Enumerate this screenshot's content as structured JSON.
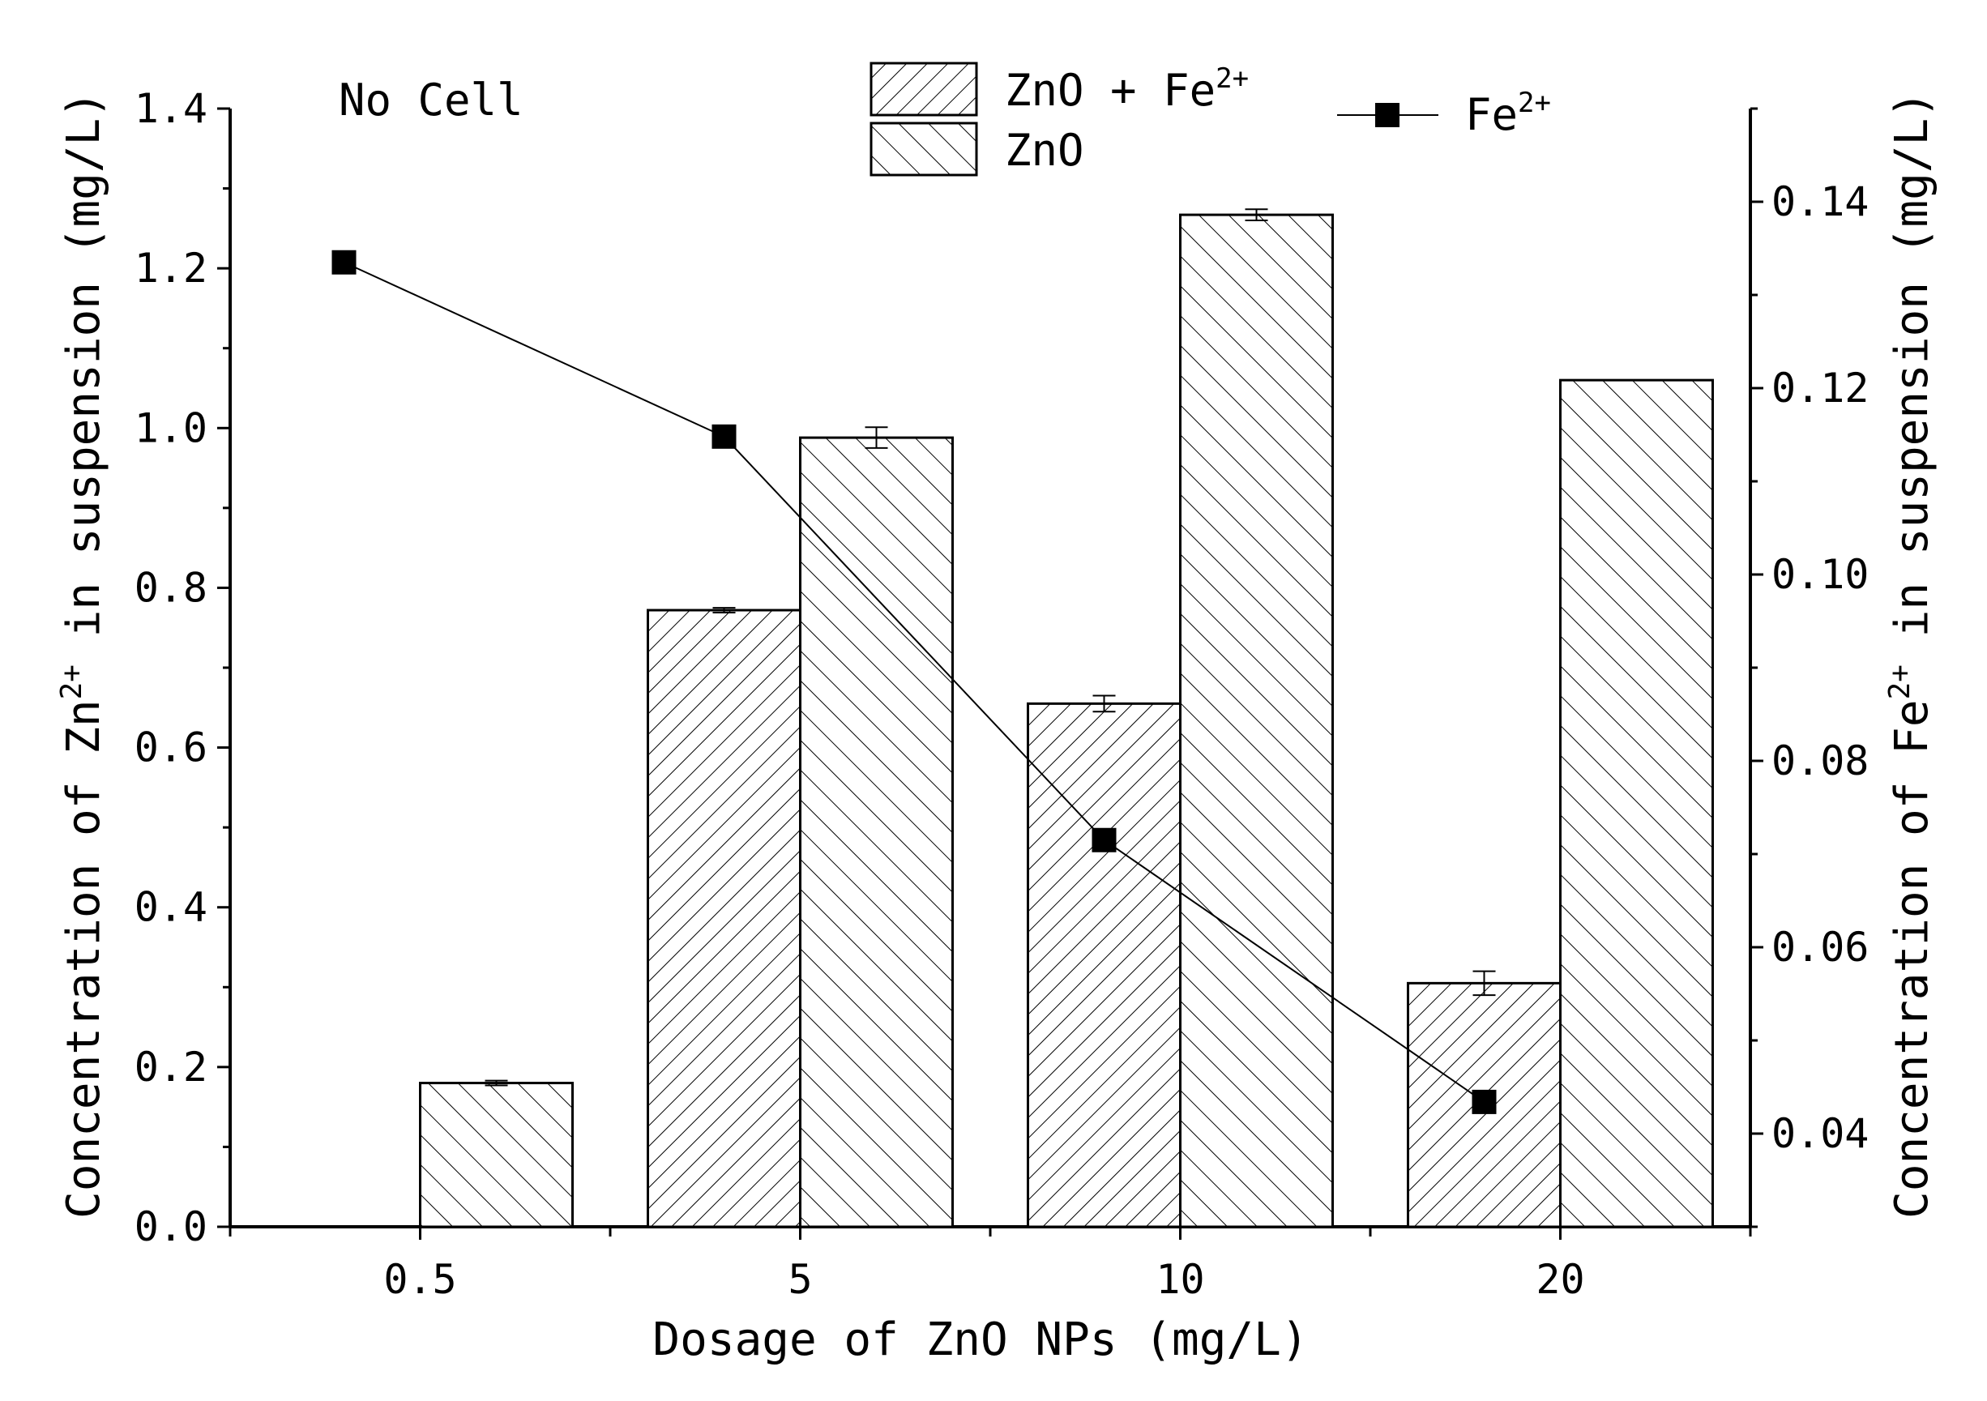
{
  "chart_data": {
    "type": "bar",
    "annotation": "No Cell",
    "xlabel": "Dosage of ZnO NPs (mg/L)",
    "ylabel_left": {
      "prefix": "Concentration of Zn",
      "sup": "2+",
      "suffix": " in suspension (mg/L)"
    },
    "ylabel_right": {
      "prefix": "Concentration of Fe",
      "sup": "2+",
      "suffix": " in suspension (mg/L)"
    },
    "categories": [
      "0.5",
      "5",
      "10",
      "20"
    ],
    "y_left": {
      "min": 0,
      "max": 1.4,
      "ticks": [
        "0.0",
        "0.2",
        "0.4",
        "0.6",
        "0.8",
        "1.0",
        "1.2",
        "1.4"
      ],
      "tick_values": [
        0,
        0.2,
        0.4,
        0.6,
        0.8,
        1.0,
        1.2,
        1.4
      ]
    },
    "y_right": {
      "min": 0.03,
      "max": 0.15,
      "ticks": [
        "0.04",
        "0.06",
        "0.08",
        "0.10",
        "0.12",
        "0.14"
      ],
      "tick_values": [
        0.04,
        0.06,
        0.08,
        0.1,
        0.12,
        0.14
      ]
    },
    "series": [
      {
        "name": "ZnO + Fe",
        "name_sup": "2+",
        "kind": "bar",
        "axis": "left",
        "pattern": "hatch-forward",
        "values": [
          null,
          0.772,
          0.655,
          0.305
        ],
        "errors": [
          null,
          0.003,
          0.01,
          0.015
        ]
      },
      {
        "name": "ZnO",
        "kind": "bar",
        "axis": "left",
        "pattern": "hatch-back",
        "values": [
          0.18,
          0.988,
          1.267,
          1.06
        ],
        "errors": [
          0.003,
          0.013,
          0.007,
          0.0
        ]
      },
      {
        "name": "Fe",
        "name_sup": "2+",
        "kind": "line",
        "axis": "right",
        "marker": "square",
        "values": [
          0.1335,
          0.1148,
          0.0715,
          0.0434
        ]
      }
    ],
    "legend_position": "top",
    "grid": false,
    "colors": {
      "bar_fill": "#ffffff",
      "stroke": "#000000",
      "marker": "#000000"
    }
  }
}
